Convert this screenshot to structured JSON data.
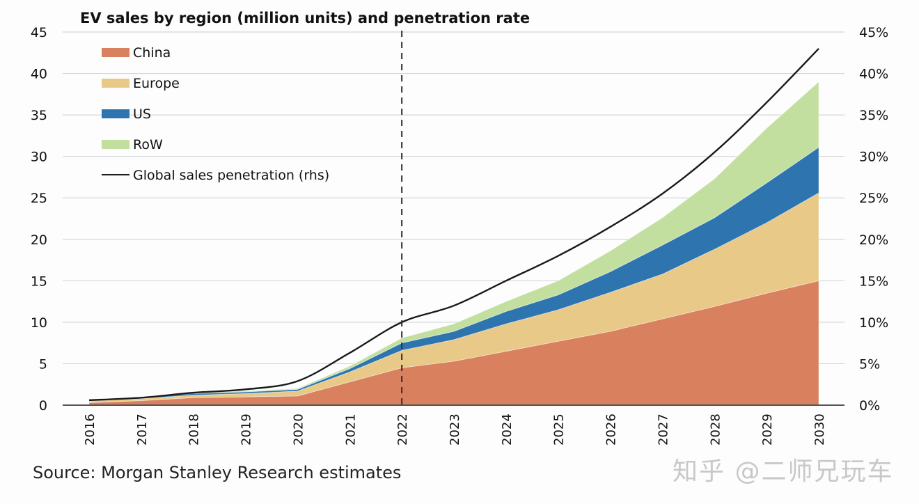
{
  "chart_data": {
    "type": "area",
    "stacked": true,
    "title": "EV sales by region (million units) and penetration rate",
    "xlabel": "",
    "ylabel": "",
    "ylabel_right": "",
    "categories": [
      "2016",
      "2017",
      "2018",
      "2019",
      "2020",
      "2021",
      "2022",
      "2023",
      "2024",
      "2025",
      "2026",
      "2027",
      "2028",
      "2029",
      "2030"
    ],
    "ylim": [
      0,
      45
    ],
    "yticks": [
      "0",
      "5",
      "10",
      "15",
      "20",
      "25",
      "30",
      "35",
      "40",
      "45"
    ],
    "ylim_right": [
      0,
      45
    ],
    "yticks_right": [
      "0%",
      "5%",
      "10%",
      "15%",
      "20%",
      "25%",
      "30%",
      "35%",
      "40%",
      "45%"
    ],
    "grid": true,
    "legend_position": "top-left",
    "forecast_divider": "2022",
    "series": [
      {
        "name": "China",
        "type": "area",
        "color": "#D9805F",
        "values": [
          0.3,
          0.55,
          0.9,
          1.0,
          1.1,
          2.8,
          4.5,
          5.3,
          6.5,
          7.7,
          8.9,
          10.4,
          11.9,
          13.5,
          15.0
        ]
      },
      {
        "name": "Europe",
        "type": "area",
        "color": "#E8C987",
        "values": [
          0.2,
          0.25,
          0.3,
          0.4,
          0.6,
          1.2,
          2.1,
          2.6,
          3.3,
          3.8,
          4.7,
          5.4,
          6.9,
          8.5,
          10.6
        ]
      },
      {
        "name": "US",
        "type": "area",
        "color": "#2E75B0",
        "values": [
          0.1,
          0.1,
          0.2,
          0.2,
          0.2,
          0.4,
          0.9,
          1.0,
          1.5,
          1.8,
          2.5,
          3.5,
          3.8,
          4.8,
          5.5
        ]
      },
      {
        "name": "RoW",
        "type": "area",
        "color": "#C3DFA0",
        "values": [
          0.05,
          0.05,
          0.1,
          0.1,
          0.1,
          0.3,
          0.6,
          0.9,
          1.2,
          1.7,
          2.5,
          3.3,
          4.7,
          6.6,
          7.9
        ]
      },
      {
        "name": "Global sales penetration (rhs)",
        "type": "line",
        "axis": "right",
        "color": "#1a1a1a",
        "unit": "%",
        "values": [
          0.6,
          0.9,
          1.5,
          1.9,
          2.9,
          6.3,
          10,
          12,
          15,
          18,
          21.5,
          25.5,
          30.5,
          36.5,
          43
        ]
      }
    ]
  },
  "footer": {
    "source": "Source: Morgan Stanley Research estimates",
    "watermark": "知乎 @二师兄玩车"
  }
}
